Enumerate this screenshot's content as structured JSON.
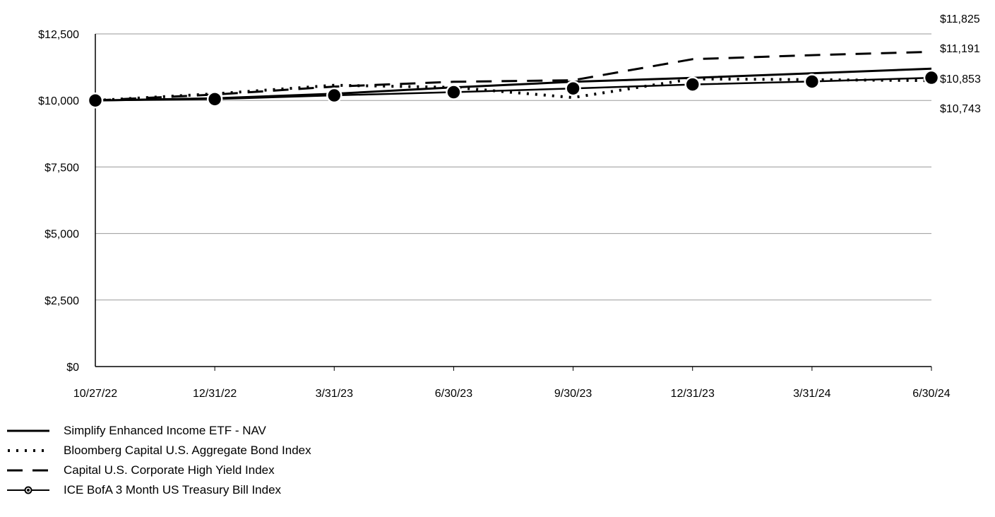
{
  "chart_data": {
    "type": "line",
    "title": "",
    "xlabel": "",
    "ylabel": "",
    "x": [
      "10/27/22",
      "12/31/22",
      "3/31/23",
      "6/30/23",
      "9/30/23",
      "12/31/23",
      "3/31/24",
      "6/30/24"
    ],
    "ylim": [
      0,
      12500
    ],
    "yticks": [
      0,
      2500,
      5000,
      7500,
      10000,
      12500
    ],
    "ytick_labels": [
      "$0",
      "$2,500",
      "$5,000",
      "$7,500",
      "$10,000",
      "$12,500"
    ],
    "grid": true,
    "legend_position": "bottom-left",
    "series": [
      {
        "name": "Simplify Enhanced Income ETF - NAV",
        "style": "solid",
        "values": [
          10000,
          10080,
          10250,
          10490,
          10700,
          10850,
          11020,
          11191
        ]
      },
      {
        "name": "Bloomberg Capital U.S. Aggregate Bond Index",
        "style": "dotted",
        "values": [
          10000,
          10250,
          10570,
          10490,
          10110,
          10810,
          10780,
          10743
        ]
      },
      {
        "name": "Capital U.S. Corporate High Yield Index",
        "style": "dashed",
        "values": [
          10000,
          10220,
          10520,
          10700,
          10760,
          11550,
          11700,
          11825
        ]
      },
      {
        "name": "ICE BofA 3 Month US Treasury Bill Index",
        "style": "solid-markers",
        "values": [
          10000,
          10050,
          10190,
          10310,
          10450,
          10600,
          10710,
          10853
        ]
      }
    ],
    "end_labels": [
      "$11,825",
      "$11,191",
      "$10,853",
      "$10,743"
    ]
  }
}
